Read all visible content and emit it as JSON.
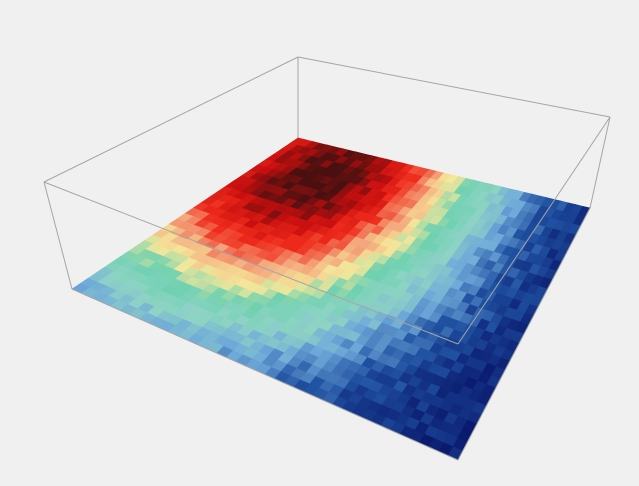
{
  "chart_data": {
    "type": "heatmap",
    "view": "3d-box",
    "title": "",
    "xlabel": "",
    "ylabel": "",
    "colormap": "jet",
    "value_range": [
      0,
      1
    ],
    "grid": {
      "cols": 40,
      "rows": 28,
      "peak": {
        "col": 7,
        "row": 4
      },
      "decay_cols": 18,
      "decay_rows": 19,
      "noise": 0.04
    },
    "box_edges": true,
    "axis_ticks": false,
    "legend": "none"
  },
  "colors": {
    "background": "#f0f0f0",
    "frame": "#ffffff",
    "box_edge": "#a5a5a5",
    "colormap_stops": [
      "#0a1a6e",
      "#1f4fa0",
      "#6fa9d9",
      "#8fd3c5",
      "#6fd1b0",
      "#f4e79a",
      "#f4a27a",
      "#ef2b1c",
      "#c70f0f",
      "#4a1010"
    ]
  }
}
